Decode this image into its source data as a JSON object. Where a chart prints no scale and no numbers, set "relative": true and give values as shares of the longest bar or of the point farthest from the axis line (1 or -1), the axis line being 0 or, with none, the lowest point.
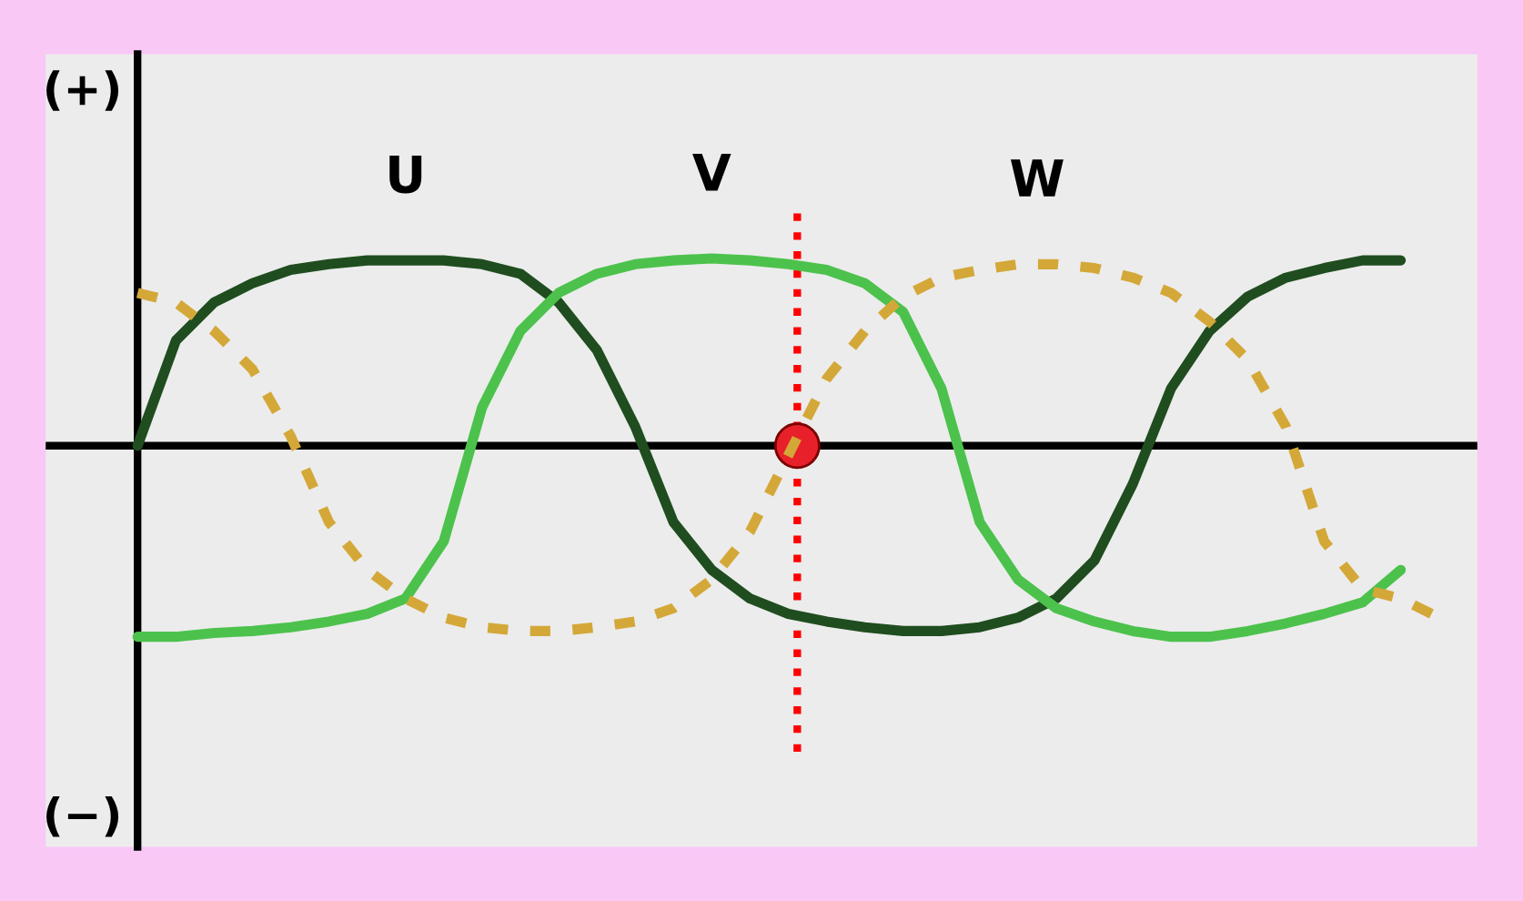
{
  "chart_data": {
    "type": "line",
    "relative": true,
    "categories": [
      null,
      null,
      null,
      null,
      null,
      null,
      null,
      null,
      null,
      null,
      null,
      null,
      null,
      null,
      null,
      null,
      null,
      null,
      null,
      null,
      null,
      null,
      null,
      null,
      null,
      null,
      null,
      null,
      null,
      null,
      null,
      null,
      null,
      null,
      null
    ],
    "series": [
      {
        "name": "U",
        "color": "#1f4d1f",
        "line_style": "solid",
        "values": [
          0,
          0.55,
          0.75,
          0.85,
          0.92,
          0.95,
          0.97,
          0.97,
          0.97,
          0.95,
          0.9,
          0.75,
          0.5,
          0.1,
          -0.4,
          -0.65,
          -0.8,
          -0.88,
          -0.92,
          -0.95,
          -0.97,
          -0.97,
          -0.95,
          -0.9,
          -0.8,
          -0.6,
          -0.2,
          0.3,
          0.6,
          0.78,
          0.88,
          0.93,
          0.97,
          0.97,
          null
        ]
      },
      {
        "name": "V",
        "color": "#4cc24c",
        "line_style": "solid",
        "values": [
          -1.0,
          -1.0,
          -0.98,
          -0.97,
          -0.95,
          -0.92,
          -0.88,
          -0.8,
          -0.5,
          0.2,
          0.6,
          0.8,
          0.9,
          0.95,
          0.97,
          0.98,
          0.97,
          0.95,
          0.92,
          0.85,
          0.7,
          0.3,
          -0.4,
          -0.7,
          -0.85,
          -0.92,
          -0.97,
          -1.0,
          -1.0,
          -0.97,
          -0.93,
          -0.88,
          -0.82,
          -0.65,
          null
        ]
      },
      {
        "name": "W",
        "color": "#d4a838",
        "line_style": "dashed",
        "values": [
          0.8,
          0.75,
          0.6,
          0.4,
          0.05,
          -0.4,
          -0.65,
          -0.8,
          -0.9,
          -0.95,
          -0.97,
          -0.97,
          -0.95,
          -0.92,
          -0.85,
          -0.7,
          -0.45,
          -0.05,
          0.35,
          0.6,
          0.78,
          0.88,
          0.92,
          0.95,
          0.95,
          0.93,
          0.88,
          0.8,
          0.65,
          0.45,
          0.1,
          -0.5,
          -0.75,
          -0.8,
          -0.9
        ]
      }
    ],
    "annotations": [
      "(+)",
      "(−)"
    ]
  }
}
